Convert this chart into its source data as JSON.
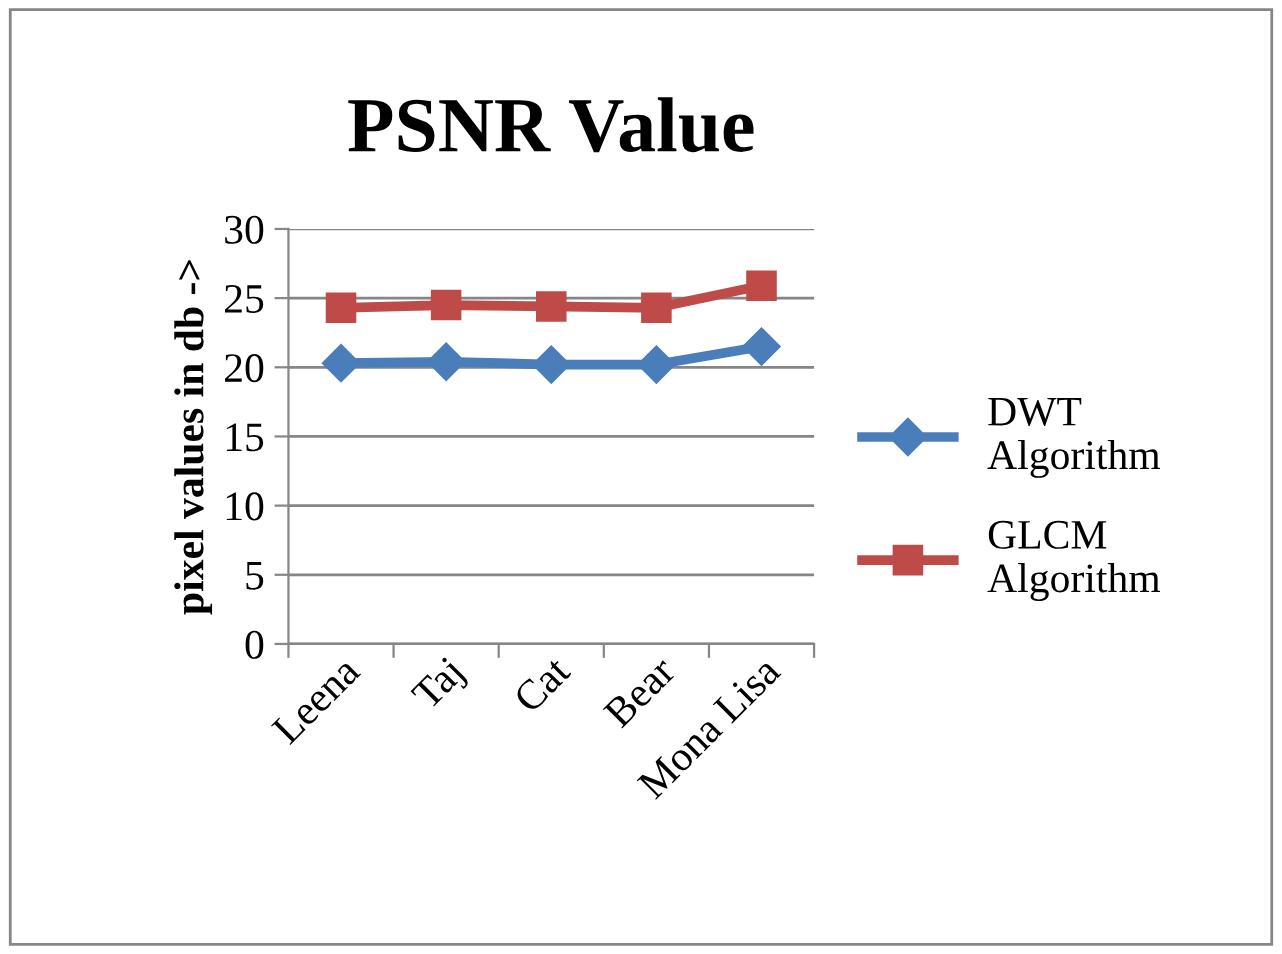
{
  "chart_data": {
    "type": "line",
    "title": "PSNR Value",
    "ylabel": "pixel values in db ->",
    "categories": [
      "Leena",
      "Taj",
      "Cat",
      "Bear",
      "Mona Lisa"
    ],
    "series": [
      {
        "name": "DWT Algorithm",
        "color": "#4a7ebb",
        "marker": "diamond",
        "values": [
          20.3,
          20.4,
          20.2,
          20.2,
          21.5
        ]
      },
      {
        "name": "GLCM Algorithm",
        "color": "#be4b48",
        "marker": "square",
        "values": [
          24.3,
          24.5,
          24.4,
          24.3,
          25.9
        ]
      }
    ],
    "ylim": [
      0,
      30
    ],
    "yticks": [
      0,
      5,
      10,
      15,
      20,
      25,
      30
    ],
    "grid": "y",
    "legend": "right"
  }
}
